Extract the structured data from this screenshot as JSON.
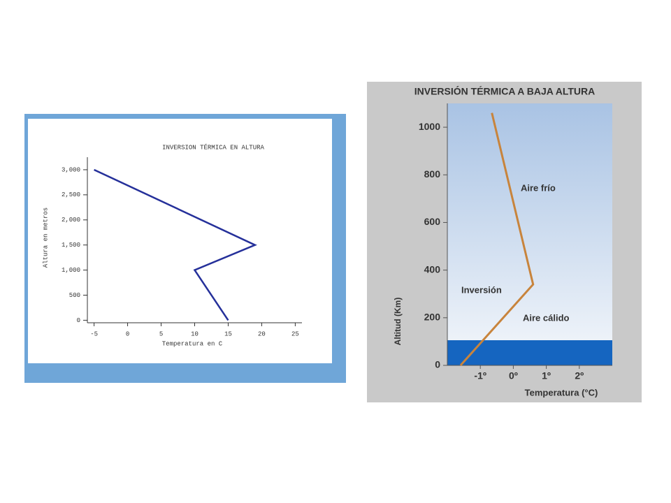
{
  "chart_data": [
    {
      "type": "line",
      "title": "INVERSION TÉRMICA EN ALTURA",
      "x_label": "Temperatura en C",
      "y_label": "Altura en metros",
      "x": [
        15,
        10,
        19,
        -5
      ],
      "values": [
        0,
        1000,
        1500,
        3000
      ],
      "color": "#25309a",
      "xlim": [
        -6,
        26
      ],
      "ylim": [
        -50,
        3250
      ],
      "xticks": [
        -5,
        0,
        5,
        10,
        15,
        20,
        25
      ],
      "yticks": [
        0,
        500,
        {
          "value": 1000,
          "label": "1,000"
        },
        {
          "value": 1500,
          "label": "1,500"
        },
        {
          "value": 2000,
          "label": "2,000"
        },
        {
          "value": 2500,
          "label": "2,500"
        },
        {
          "value": 3000,
          "label": "3,000"
        }
      ]
    },
    {
      "type": "line",
      "title": "INVERSIÓN TÉRMICA A BAJA ALTURA",
      "x_label": "Temperatura (°C)",
      "y_label": "Altitud (Km)",
      "x": [
        -1.6,
        0.6,
        -0.65
      ],
      "values": [
        0,
        340,
        1060
      ],
      "color": "#c8843c",
      "xlim": [
        -2,
        3
      ],
      "ylim": [
        0,
        1100
      ],
      "xticks": [
        {
          "value": -1,
          "label": "-1º"
        },
        {
          "value": 0,
          "label": "0º"
        },
        {
          "value": 1,
          "label": "1º"
        },
        {
          "value": 2,
          "label": "2º"
        }
      ],
      "yticks": [
        0,
        200,
        400,
        600,
        800,
        1000
      ],
      "annotations": [
        "Aire frío",
        "Inversión",
        "Aire cálido"
      ]
    }
  ]
}
